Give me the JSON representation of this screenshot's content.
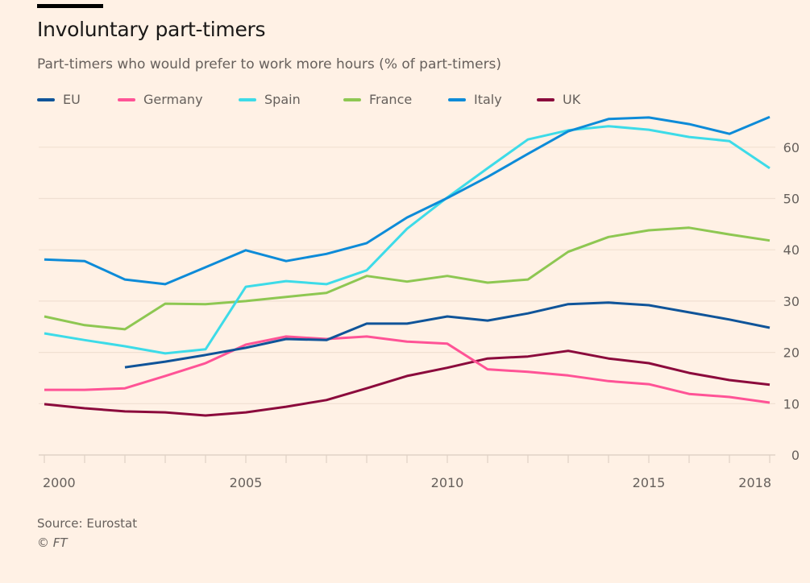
{
  "title": "Involuntary part-timers",
  "subtitle": "Part-timers who would prefer to work more hours (% of part-timers)",
  "source": "Source: Eurostat",
  "copyright": "© FT",
  "chart_data": {
    "type": "line",
    "title": "Involuntary part-timers",
    "subtitle": "Part-timers who would prefer to work more hours (% of part-timers)",
    "xlabel": "",
    "ylabel": "% of part-timers",
    "x": [
      2000,
      2001,
      2002,
      2003,
      2004,
      2005,
      2006,
      2007,
      2008,
      2009,
      2010,
      2011,
      2012,
      2013,
      2014,
      2015,
      2016,
      2017,
      2018
    ],
    "xlim": [
      2000,
      2018
    ],
    "ylim": [
      0,
      66
    ],
    "x_tick_labels": [
      "2000",
      "2005",
      "2010",
      "2015",
      "2018"
    ],
    "x_tick_values": [
      2000,
      2005,
      2010,
      2015,
      2018
    ],
    "y_ticks": [
      0,
      10,
      20,
      30,
      40,
      50,
      60
    ],
    "y_tick_labels": [
      "0",
      "10",
      "20",
      "30",
      "40",
      "50",
      "60"
    ],
    "y_axis_side": "right",
    "grid": true,
    "legend_position": "top-left",
    "series": [
      {
        "name": "EU",
        "color": "#0f5499",
        "values": [
          null,
          null,
          17.1,
          18.2,
          19.5,
          20.9,
          22.6,
          22.4,
          25.6,
          25.6,
          27.0,
          26.2,
          27.6,
          29.4,
          29.7,
          29.2,
          27.8,
          26.4,
          24.8
        ]
      },
      {
        "name": "Germany",
        "color": "#ff5396",
        "values": [
          12.7,
          12.7,
          13.0,
          15.4,
          17.9,
          21.5,
          23.1,
          22.6,
          23.1,
          22.1,
          21.7,
          16.7,
          16.2,
          15.5,
          14.4,
          13.8,
          11.9,
          11.3,
          10.2
        ]
      },
      {
        "name": "Spain",
        "color": "#3ddbe8",
        "values": [
          23.7,
          22.4,
          21.2,
          19.8,
          20.6,
          32.8,
          33.9,
          33.3,
          36.0,
          44.1,
          50.2,
          55.9,
          61.5,
          63.3,
          64.1,
          63.4,
          62.0,
          61.2,
          55.9
        ]
      },
      {
        "name": "France",
        "color": "#8ec752",
        "values": [
          27.0,
          25.3,
          24.5,
          29.5,
          29.4,
          30.0,
          30.8,
          31.6,
          34.9,
          33.8,
          34.9,
          33.6,
          34.2,
          39.6,
          42.5,
          43.8,
          44.3,
          43.0,
          41.8
        ]
      },
      {
        "name": "Italy",
        "color": "#0d8bd8",
        "values": [
          38.1,
          37.8,
          34.2,
          33.3,
          36.6,
          39.9,
          37.8,
          39.2,
          41.3,
          46.3,
          50.1,
          54.2,
          58.7,
          63.1,
          65.5,
          65.8,
          64.5,
          62.6,
          65.9
        ]
      },
      {
        "name": "UK",
        "color": "#8b0a3c",
        "values": [
          9.9,
          9.1,
          8.5,
          8.3,
          7.7,
          8.3,
          9.4,
          10.7,
          13.0,
          15.4,
          17.0,
          18.8,
          19.2,
          20.3,
          18.8,
          17.9,
          16.0,
          14.6,
          13.7
        ]
      }
    ]
  }
}
